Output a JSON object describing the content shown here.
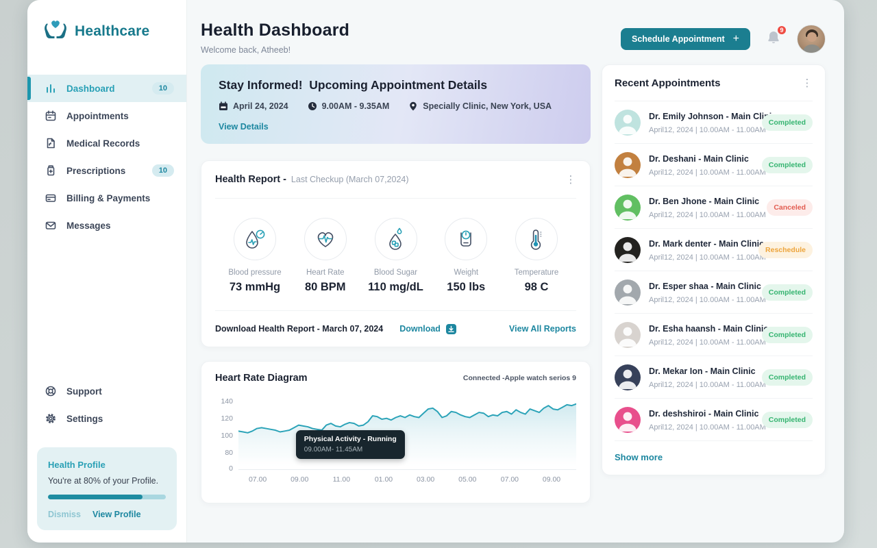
{
  "brand": {
    "name": "Healthcare"
  },
  "sidebar": {
    "items": [
      {
        "label": "Dashboard",
        "badge": "10",
        "icon": "bar-chart",
        "active": true
      },
      {
        "label": "Appointments",
        "icon": "calendar"
      },
      {
        "label": "Medical Records",
        "icon": "document"
      },
      {
        "label": "Prescriptions",
        "badge": "10",
        "icon": "prescription"
      },
      {
        "label": "Billing & Payments",
        "icon": "credit-card"
      },
      {
        "label": "Messages",
        "icon": "envelope"
      }
    ],
    "footer_items": [
      {
        "label": "Support",
        "icon": "lifebuoy"
      },
      {
        "label": "Settings",
        "icon": "gear"
      }
    ],
    "profile_card": {
      "title": "Health Profile",
      "text": "You're at 80% of your Profile.",
      "progress_percent": 80,
      "dismiss_label": "Dismiss",
      "view_label": "View Profile"
    }
  },
  "header": {
    "title": "Health Dashboard",
    "subtitle": "Welcome back, Atheeb!",
    "schedule_button": "Schedule Appointment",
    "notification_count": "9"
  },
  "banner": {
    "title": "Stay Informed!  Upcoming Appointment Details",
    "date": "April 24, 2024",
    "time": "9.00AM - 9.35AM",
    "location": "Specially Clinic, New York, USA",
    "link": "View Details"
  },
  "health_report": {
    "title": "Health Report -",
    "subtitle": "Last Checkup (March 07,2024)",
    "metrics": [
      {
        "label": "Blood pressure",
        "value": "73 mmHg",
        "icon": "blood-pressure"
      },
      {
        "label": "Heart Rate",
        "value": "80 BPM",
        "icon": "heart-rate"
      },
      {
        "label": "Blood Sugar",
        "value": "110 mg/dL",
        "icon": "blood-sugar"
      },
      {
        "label": "Weight",
        "value": "150 lbs",
        "icon": "weight"
      },
      {
        "label": "Temperature",
        "value": "98 C",
        "icon": "temperature"
      }
    ],
    "footer": {
      "text": "Download Health Report - March 07, 2024",
      "download_label": "Download",
      "view_all_label": "View All Reports"
    }
  },
  "heart_rate": {
    "title": "Heart Rate Diagram",
    "connection": "Connected -Apple watch serios 9",
    "tooltip": {
      "line1": "Physical Activity - Running",
      "line2": "09.00AM- 11.45AM"
    }
  },
  "chart_data": {
    "type": "area",
    "title": "Heart Rate Diagram",
    "xlabel": "",
    "ylabel": "",
    "x_ticks": [
      "07.00",
      "09.00",
      "11.00",
      "01.00",
      "03.00",
      "05.00",
      "07.00",
      "09.00"
    ],
    "y_ticks": [
      0,
      80,
      100,
      120,
      140
    ],
    "ylim": [
      0,
      145
    ],
    "grid": false,
    "legend": "none",
    "line_color": "#2ba3b8",
    "fill_color": "#d9edf1",
    "annotation": "Physical Activity - Running 09.00AM- 11.45AM",
    "values": [
      105,
      104,
      103,
      105,
      108,
      109,
      108,
      107,
      106,
      104,
      105,
      106,
      109,
      112,
      111,
      110,
      108,
      107,
      106,
      112,
      114,
      111,
      110,
      113,
      115,
      114,
      111,
      112,
      116,
      123,
      122,
      119,
      120,
      118,
      121,
      123,
      121,
      124,
      122,
      121,
      126,
      131,
      132,
      128,
      121,
      123,
      128,
      127,
      124,
      122,
      121,
      124,
      127,
      126,
      122,
      124,
      123,
      127,
      128,
      125,
      130,
      127,
      125,
      131,
      129,
      127,
      132,
      135,
      131,
      130,
      133,
      136,
      135,
      137
    ]
  },
  "appointments": {
    "title": "Recent Appointments",
    "rows": [
      {
        "name": "Dr. Emily Johnson - Main Clinic",
        "datetime": "April12, 2024 | 10.00AM - 11.00AM",
        "status": "Completed",
        "status_bg": "#e4f6ec",
        "status_fg": "#35b470",
        "avatar_color": "#bfe3df"
      },
      {
        "name": "Dr. Deshani - Main Clinic",
        "datetime": "April12, 2024 | 10.00AM - 11.00AM",
        "status": "Completed",
        "status_bg": "#e4f6ec",
        "status_fg": "#35b470",
        "avatar_color": "#c2803f"
      },
      {
        "name": "Dr. Ben Jhone - Main Clinic",
        "datetime": "April12, 2024 | 10.00AM - 11.00AM",
        "status": "Canceled",
        "status_bg": "#fdecea",
        "status_fg": "#e25c50",
        "avatar_color": "#61bf62"
      },
      {
        "name": "Dr. Mark denter - Main Clinic",
        "datetime": "April12, 2024 | 10.00AM - 11.00AM",
        "status": "Reschedule",
        "status_bg": "#fdf2e0",
        "status_fg": "#eda43b",
        "avatar_color": "#23221f"
      },
      {
        "name": "Dr. Esper shaa - Main Clinic",
        "datetime": "April12, 2024 | 10.00AM - 11.00AM",
        "status": "Completed",
        "status_bg": "#e4f6ec",
        "status_fg": "#35b470",
        "avatar_color": "#a2a8ad"
      },
      {
        "name": "Dr. Esha haansh - Main Clinic",
        "datetime": "April12, 2024 | 10.00AM - 11.00AM",
        "status": "Completed",
        "status_bg": "#e4f6ec",
        "status_fg": "#35b470",
        "avatar_color": "#d8d3cf"
      },
      {
        "name": "Dr. Mekar Ion - Main Clinic",
        "datetime": "April12, 2024 | 10.00AM - 11.00AM",
        "status": "Completed",
        "status_bg": "#e4f6ec",
        "status_fg": "#35b470",
        "avatar_color": "#37415a"
      },
      {
        "name": "Dr. deshshiroi - Main Clinic",
        "datetime": "April12, 2024 | 10.00AM - 11.00AM",
        "status": "Completed",
        "status_bg": "#e4f6ec",
        "status_fg": "#35b470",
        "avatar_color": "#e84f8c"
      }
    ],
    "show_more": "Show more"
  },
  "colors": {
    "brand_teal": "#1b7e90",
    "link_teal": "#1d87a0",
    "active_nav": "#28a0b6",
    "badge_red": "#ef4d44",
    "chart_line": "#2ba3b8"
  }
}
